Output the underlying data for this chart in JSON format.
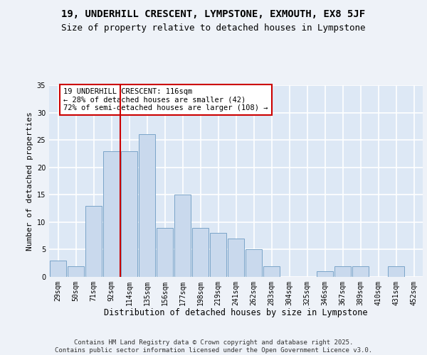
{
  "title1": "19, UNDERHILL CRESCENT, LYMPSTONE, EXMOUTH, EX8 5JF",
  "title2": "Size of property relative to detached houses in Lympstone",
  "xlabel": "Distribution of detached houses by size in Lympstone",
  "ylabel": "Number of detached properties",
  "bin_labels": [
    "29sqm",
    "50sqm",
    "71sqm",
    "92sqm",
    "114sqm",
    "135sqm",
    "156sqm",
    "177sqm",
    "198sqm",
    "219sqm",
    "241sqm",
    "262sqm",
    "283sqm",
    "304sqm",
    "325sqm",
    "346sqm",
    "367sqm",
    "389sqm",
    "410sqm",
    "431sqm",
    "452sqm"
  ],
  "bar_values": [
    3,
    2,
    13,
    23,
    23,
    26,
    9,
    15,
    9,
    8,
    7,
    5,
    2,
    0,
    0,
    1,
    2,
    2,
    0,
    2,
    0
  ],
  "bar_color": "#c9d9ed",
  "bar_edge_color": "#7aa4c8",
  "fig_bg_color": "#eef2f8",
  "axes_bg_color": "#dde8f5",
  "grid_color": "#ffffff",
  "vline_index": 4,
  "vline_color": "#cc0000",
  "annotation_text": "19 UNDERHILL CRESCENT: 116sqm\n← 28% of detached houses are smaller (42)\n72% of semi-detached houses are larger (108) →",
  "annotation_box_facecolor": "#ffffff",
  "annotation_box_edgecolor": "#cc0000",
  "footer_text": "Contains HM Land Registry data © Crown copyright and database right 2025.\nContains public sector information licensed under the Open Government Licence v3.0.",
  "ylim": [
    0,
    35
  ],
  "yticks": [
    0,
    5,
    10,
    15,
    20,
    25,
    30,
    35
  ],
  "title1_fontsize": 10,
  "title2_fontsize": 9,
  "xlabel_fontsize": 8.5,
  "ylabel_fontsize": 8,
  "tick_fontsize": 7,
  "annotation_fontsize": 7.5,
  "footer_fontsize": 6.5
}
